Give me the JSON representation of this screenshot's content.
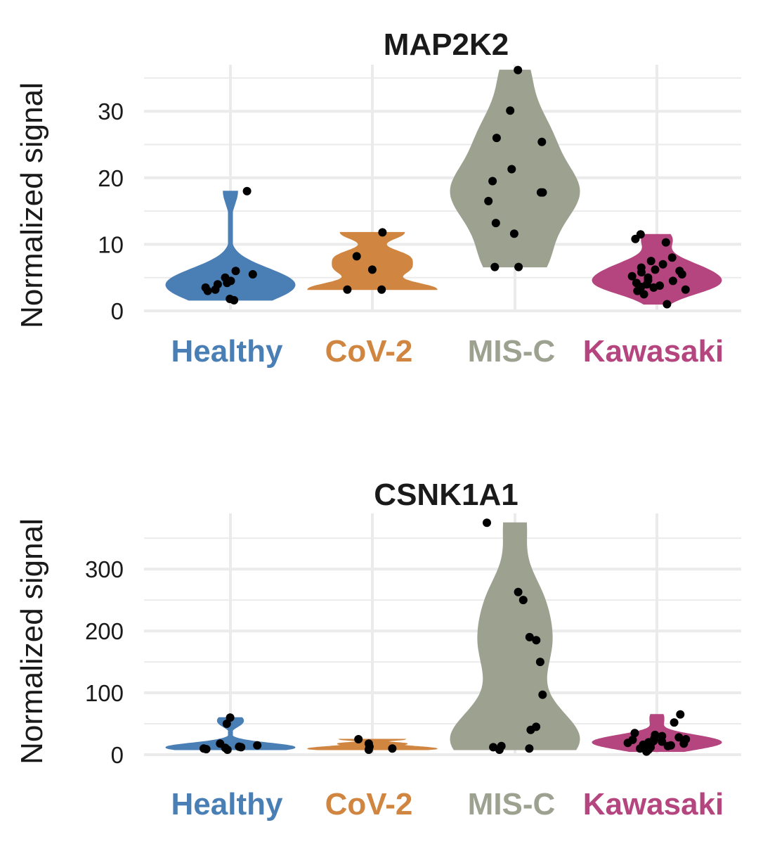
{
  "colors": {
    "Healthy": "#4a7fb5",
    "CoV-2": "#d08540",
    "MIS-C": "#9ca190",
    "Kawasaki": "#b5457f",
    "points": "#000000",
    "grid": "#ebebeb"
  },
  "chart_data": [
    {
      "type": "violin",
      "title": "MAP2K2",
      "ylabel": "Normalized signal",
      "ylim": [
        0,
        37
      ],
      "yticks": [
        0,
        10,
        20,
        30
      ],
      "categories": [
        "Healthy",
        "CoV-2",
        "MIS-C",
        "Kawasaki"
      ],
      "series": [
        {
          "category": "Healthy",
          "values": [
            1.8,
            1.6,
            3.0,
            3.2,
            4.2,
            4.5,
            3.5,
            5.5,
            6.0,
            5.0,
            4.0,
            18.0
          ]
        },
        {
          "category": "CoV-2",
          "values": [
            3.2,
            3.2,
            6.2,
            8.2,
            11.8
          ]
        },
        {
          "category": "MIS-C",
          "values": [
            6.6,
            6.6,
            11.6,
            13.2,
            16.5,
            17.8,
            17.8,
            19.5,
            21.3,
            25.4,
            26.0,
            30.1,
            36.2
          ]
        },
        {
          "category": "Kawasaki",
          "values": [
            1.0,
            2.5,
            3.0,
            3.2,
            3.5,
            3.6,
            3.8,
            4.0,
            4.2,
            4.5,
            4.6,
            5.0,
            5.2,
            5.5,
            5.8,
            6.0,
            6.2,
            6.5,
            7.0,
            7.5,
            8.0,
            10.3,
            10.8,
            11.5
          ]
        }
      ]
    },
    {
      "type": "violin",
      "title": "CSNK1A1",
      "ylabel": "Normalized signal",
      "ylim": [
        0,
        390
      ],
      "yticks": [
        0,
        100,
        200,
        300
      ],
      "categories": [
        "Healthy",
        "CoV-2",
        "MIS-C",
        "Kawasaki"
      ],
      "series": [
        {
          "category": "Healthy",
          "values": [
            8,
            9,
            10,
            11,
            12,
            13,
            15,
            18,
            50,
            60
          ]
        },
        {
          "category": "CoV-2",
          "values": [
            8,
            10,
            13,
            18,
            25
          ]
        },
        {
          "category": "MIS-C",
          "values": [
            8,
            10,
            12,
            14,
            40,
            45,
            97,
            150,
            185,
            190,
            250,
            263,
            375
          ]
        },
        {
          "category": "Kawasaki",
          "values": [
            5,
            8,
            10,
            12,
            14,
            15,
            16,
            18,
            19,
            20,
            21,
            22,
            24,
            25,
            26,
            28,
            30,
            32,
            35,
            52,
            65
          ]
        }
      ]
    }
  ]
}
